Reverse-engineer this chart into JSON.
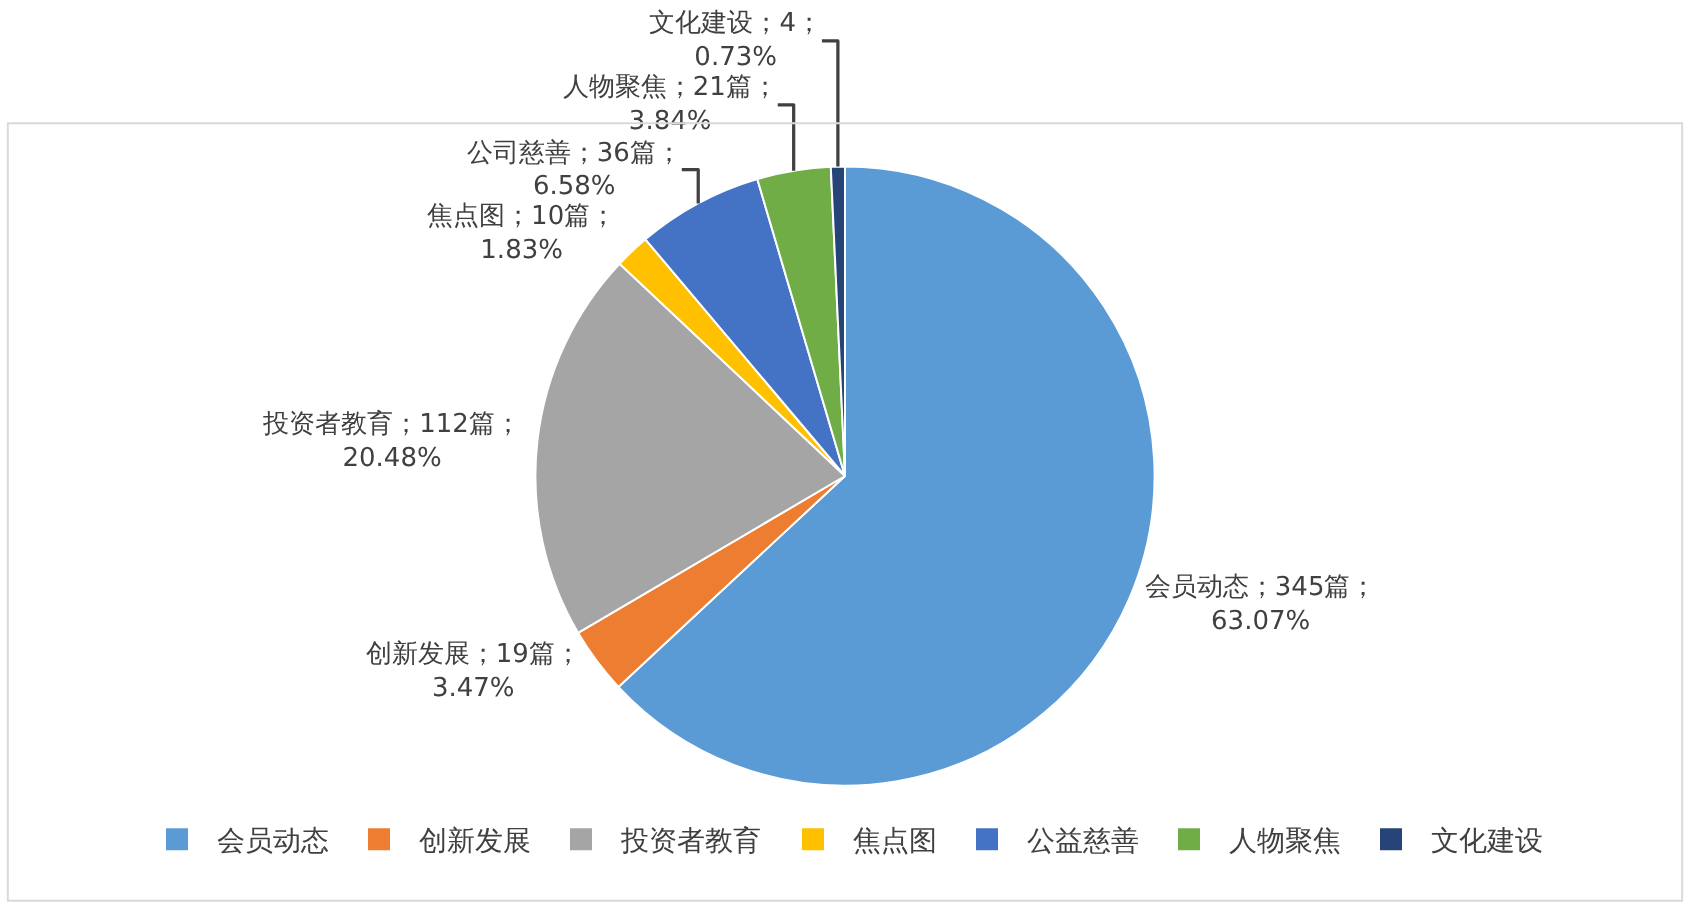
{
  "chart_data": {
    "type": "pie",
    "categories": [
      "会员动态",
      "创新发展",
      "投资者教育",
      "焦点图",
      "公益慈善",
      "人物聚焦",
      "文化建设"
    ],
    "values": [
      345,
      19,
      112,
      10,
      36,
      21,
      4
    ],
    "colors": [
      "#5b9bd5",
      "#ed7d31",
      "#a5a5a5",
      "#ffc000",
      "#4472c4",
      "#70ad47",
      "#264478"
    ],
    "value_labels": [
      "会员动态；345篇；\n63.07%",
      "创新发展；19篇；\n3.47%",
      "投资者教育；112篇；\n20.48%",
      "焦点图；10篇；\n1.83%",
      "公司慈善；36篇；\n6.58%",
      "人物聚焦；21篇；\n3.84%",
      "文化建设；4；\n0.73%"
    ],
    "legend": "bottom"
  }
}
